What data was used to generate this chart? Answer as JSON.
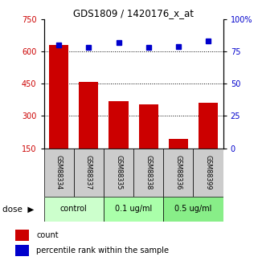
{
  "title": "GDS1809 / 1420176_x_at",
  "categories": [
    "GSM88334",
    "GSM88337",
    "GSM88335",
    "GSM88338",
    "GSM88336",
    "GSM88399"
  ],
  "bar_values": [
    630,
    460,
    370,
    355,
    195,
    360
  ],
  "dot_values": [
    80,
    78,
    82,
    78,
    79,
    83
  ],
  "ylim_left": [
    150,
    750
  ],
  "ylim_right": [
    0,
    100
  ],
  "yticks_left": [
    150,
    300,
    450,
    600,
    750
  ],
  "yticks_right": [
    0,
    25,
    50,
    75,
    100
  ],
  "grid_values": [
    300,
    450,
    600
  ],
  "bar_color": "#cc0000",
  "dot_color": "#0000cc",
  "bar_bottom": 150,
  "groups": [
    {
      "label": "control",
      "indices": [
        0,
        1
      ],
      "color": "#ccffcc"
    },
    {
      "label": "0.1 ug/ml",
      "indices": [
        2,
        3
      ],
      "color": "#aaffaa"
    },
    {
      "label": "0.5 ug/ml",
      "indices": [
        4,
        5
      ],
      "color": "#88ee88"
    }
  ],
  "background_label": "#cccccc",
  "legend_labels": [
    "count",
    "percentile rank within the sample"
  ]
}
